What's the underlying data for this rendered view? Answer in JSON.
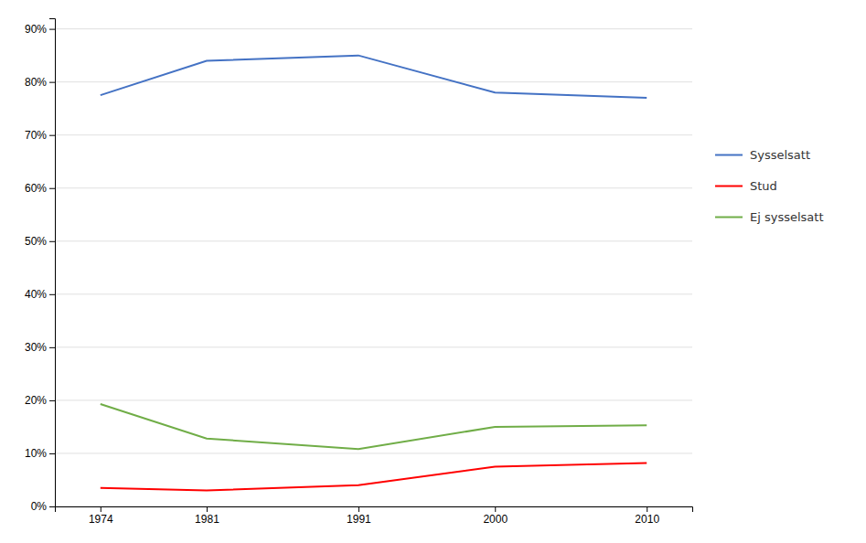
{
  "chart_data": {
    "type": "line",
    "x": [
      1974,
      1981,
      1991,
      2000,
      2010
    ],
    "series": [
      {
        "name": "Sysselsatt",
        "color": "#4472C4",
        "values": [
          0.775,
          0.84,
          0.85,
          0.78,
          0.77
        ]
      },
      {
        "name": "Stud",
        "color": "#FF0000",
        "values": [
          0.035,
          0.03,
          0.04,
          0.075,
          0.082
        ]
      },
      {
        "name": "Ej sysselsatt",
        "color": "#70AD47",
        "values": [
          0.193,
          0.128,
          0.108,
          0.15,
          0.153
        ]
      }
    ],
    "xlim": [
      1971,
      2013
    ],
    "xticks": [
      1974,
      1981,
      1991,
      2000,
      2010
    ],
    "ylim": [
      0,
      0.92
    ],
    "yticks": [
      {
        "value": 0.0,
        "label": "0%"
      },
      {
        "value": 0.1,
        "label": "10%"
      },
      {
        "value": 0.2,
        "label": "20%"
      },
      {
        "value": 0.3,
        "label": "30%"
      },
      {
        "value": 0.4,
        "label": "40%"
      },
      {
        "value": 0.5,
        "label": "50%"
      },
      {
        "value": 0.6,
        "label": "60%"
      },
      {
        "value": 0.7,
        "label": "70%"
      },
      {
        "value": 0.8,
        "label": "80%"
      },
      {
        "value": 0.9,
        "label": "90%"
      }
    ],
    "grid": true,
    "legend": "right"
  }
}
